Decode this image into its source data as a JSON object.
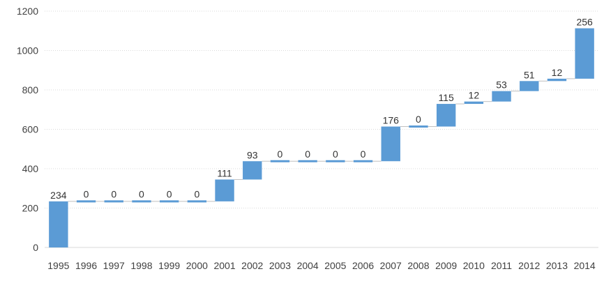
{
  "chart_data": {
    "type": "bar",
    "subtype": "waterfall",
    "title": "",
    "xlabel": "",
    "ylabel": "",
    "ylim": [
      0,
      1200
    ],
    "yticks": [
      0,
      200,
      400,
      600,
      800,
      1000,
      1200
    ],
    "grid": "horizontal",
    "legend": "none",
    "bar_color": "#5b9bd5",
    "categories": [
      "1995",
      "1996",
      "1997",
      "1998",
      "1999",
      "2000",
      "2001",
      "2002",
      "2003",
      "2004",
      "2005",
      "2006",
      "2007",
      "2008",
      "2009",
      "2010",
      "2011",
      "2012",
      "2013",
      "2014"
    ],
    "values": [
      234,
      0,
      0,
      0,
      0,
      0,
      111,
      93,
      0,
      0,
      0,
      0,
      176,
      0,
      115,
      12,
      53,
      51,
      12,
      256
    ],
    "data_labels": [
      "234",
      "0",
      "0",
      "0",
      "0",
      "0",
      "111",
      "93",
      "0",
      "0",
      "0",
      "0",
      "176",
      "0",
      "115",
      "12",
      "53",
      "51",
      "12",
      "256"
    ]
  }
}
